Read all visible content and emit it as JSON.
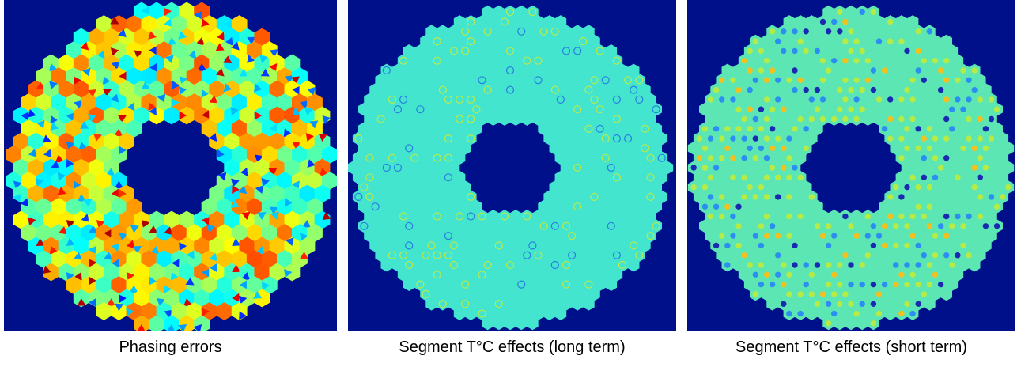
{
  "panels": [
    {
      "caption": "Phasing errors",
      "style": "phasing",
      "colors": {
        "background": "#000f8a",
        "base": "#7ee6a0"
      }
    },
    {
      "caption": "Segment T°C effects (long term)",
      "style": "long",
      "colors": {
        "background": "#000f8a",
        "base": "#43e5cf"
      }
    },
    {
      "caption": "Segment T°C effects (short term)",
      "style": "short",
      "colors": {
        "background": "#000f8a",
        "base": "#5ce6b4"
      }
    }
  ]
}
